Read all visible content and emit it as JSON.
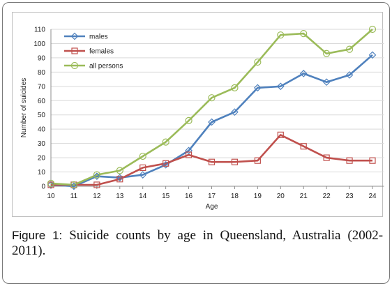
{
  "caption": {
    "label": "Figure 1:",
    "text": "Suicide counts by age in Queensland, Australia (2002-2011)."
  },
  "chart_data": {
    "type": "line",
    "x": [
      10,
      11,
      12,
      13,
      14,
      15,
      16,
      17,
      18,
      19,
      20,
      21,
      22,
      23,
      24
    ],
    "xlabel": "Age",
    "ylabel": "Number of suicides",
    "ylim": [
      0,
      110
    ],
    "yticks": [
      0,
      10,
      20,
      30,
      40,
      50,
      60,
      70,
      80,
      90,
      100,
      110
    ],
    "grid": true,
    "legend_position": "top-left",
    "series": [
      {
        "name": "males",
        "marker": "diamond",
        "color": "#4f81bd",
        "values": [
          1,
          0,
          7,
          6,
          8,
          15,
          25,
          45,
          52,
          69,
          70,
          79,
          73,
          78,
          92
        ]
      },
      {
        "name": "females",
        "marker": "square",
        "color": "#c0504d",
        "values": [
          1,
          1,
          1,
          5,
          13,
          16,
          22,
          17,
          17,
          18,
          36,
          28,
          20,
          18,
          18
        ]
      },
      {
        "name": "all persons",
        "marker": "circle",
        "color": "#9bbb59",
        "values": [
          2,
          1,
          8,
          11,
          21,
          31,
          46,
          62,
          69,
          87,
          106,
          107,
          93,
          96,
          110
        ]
      }
    ]
  }
}
